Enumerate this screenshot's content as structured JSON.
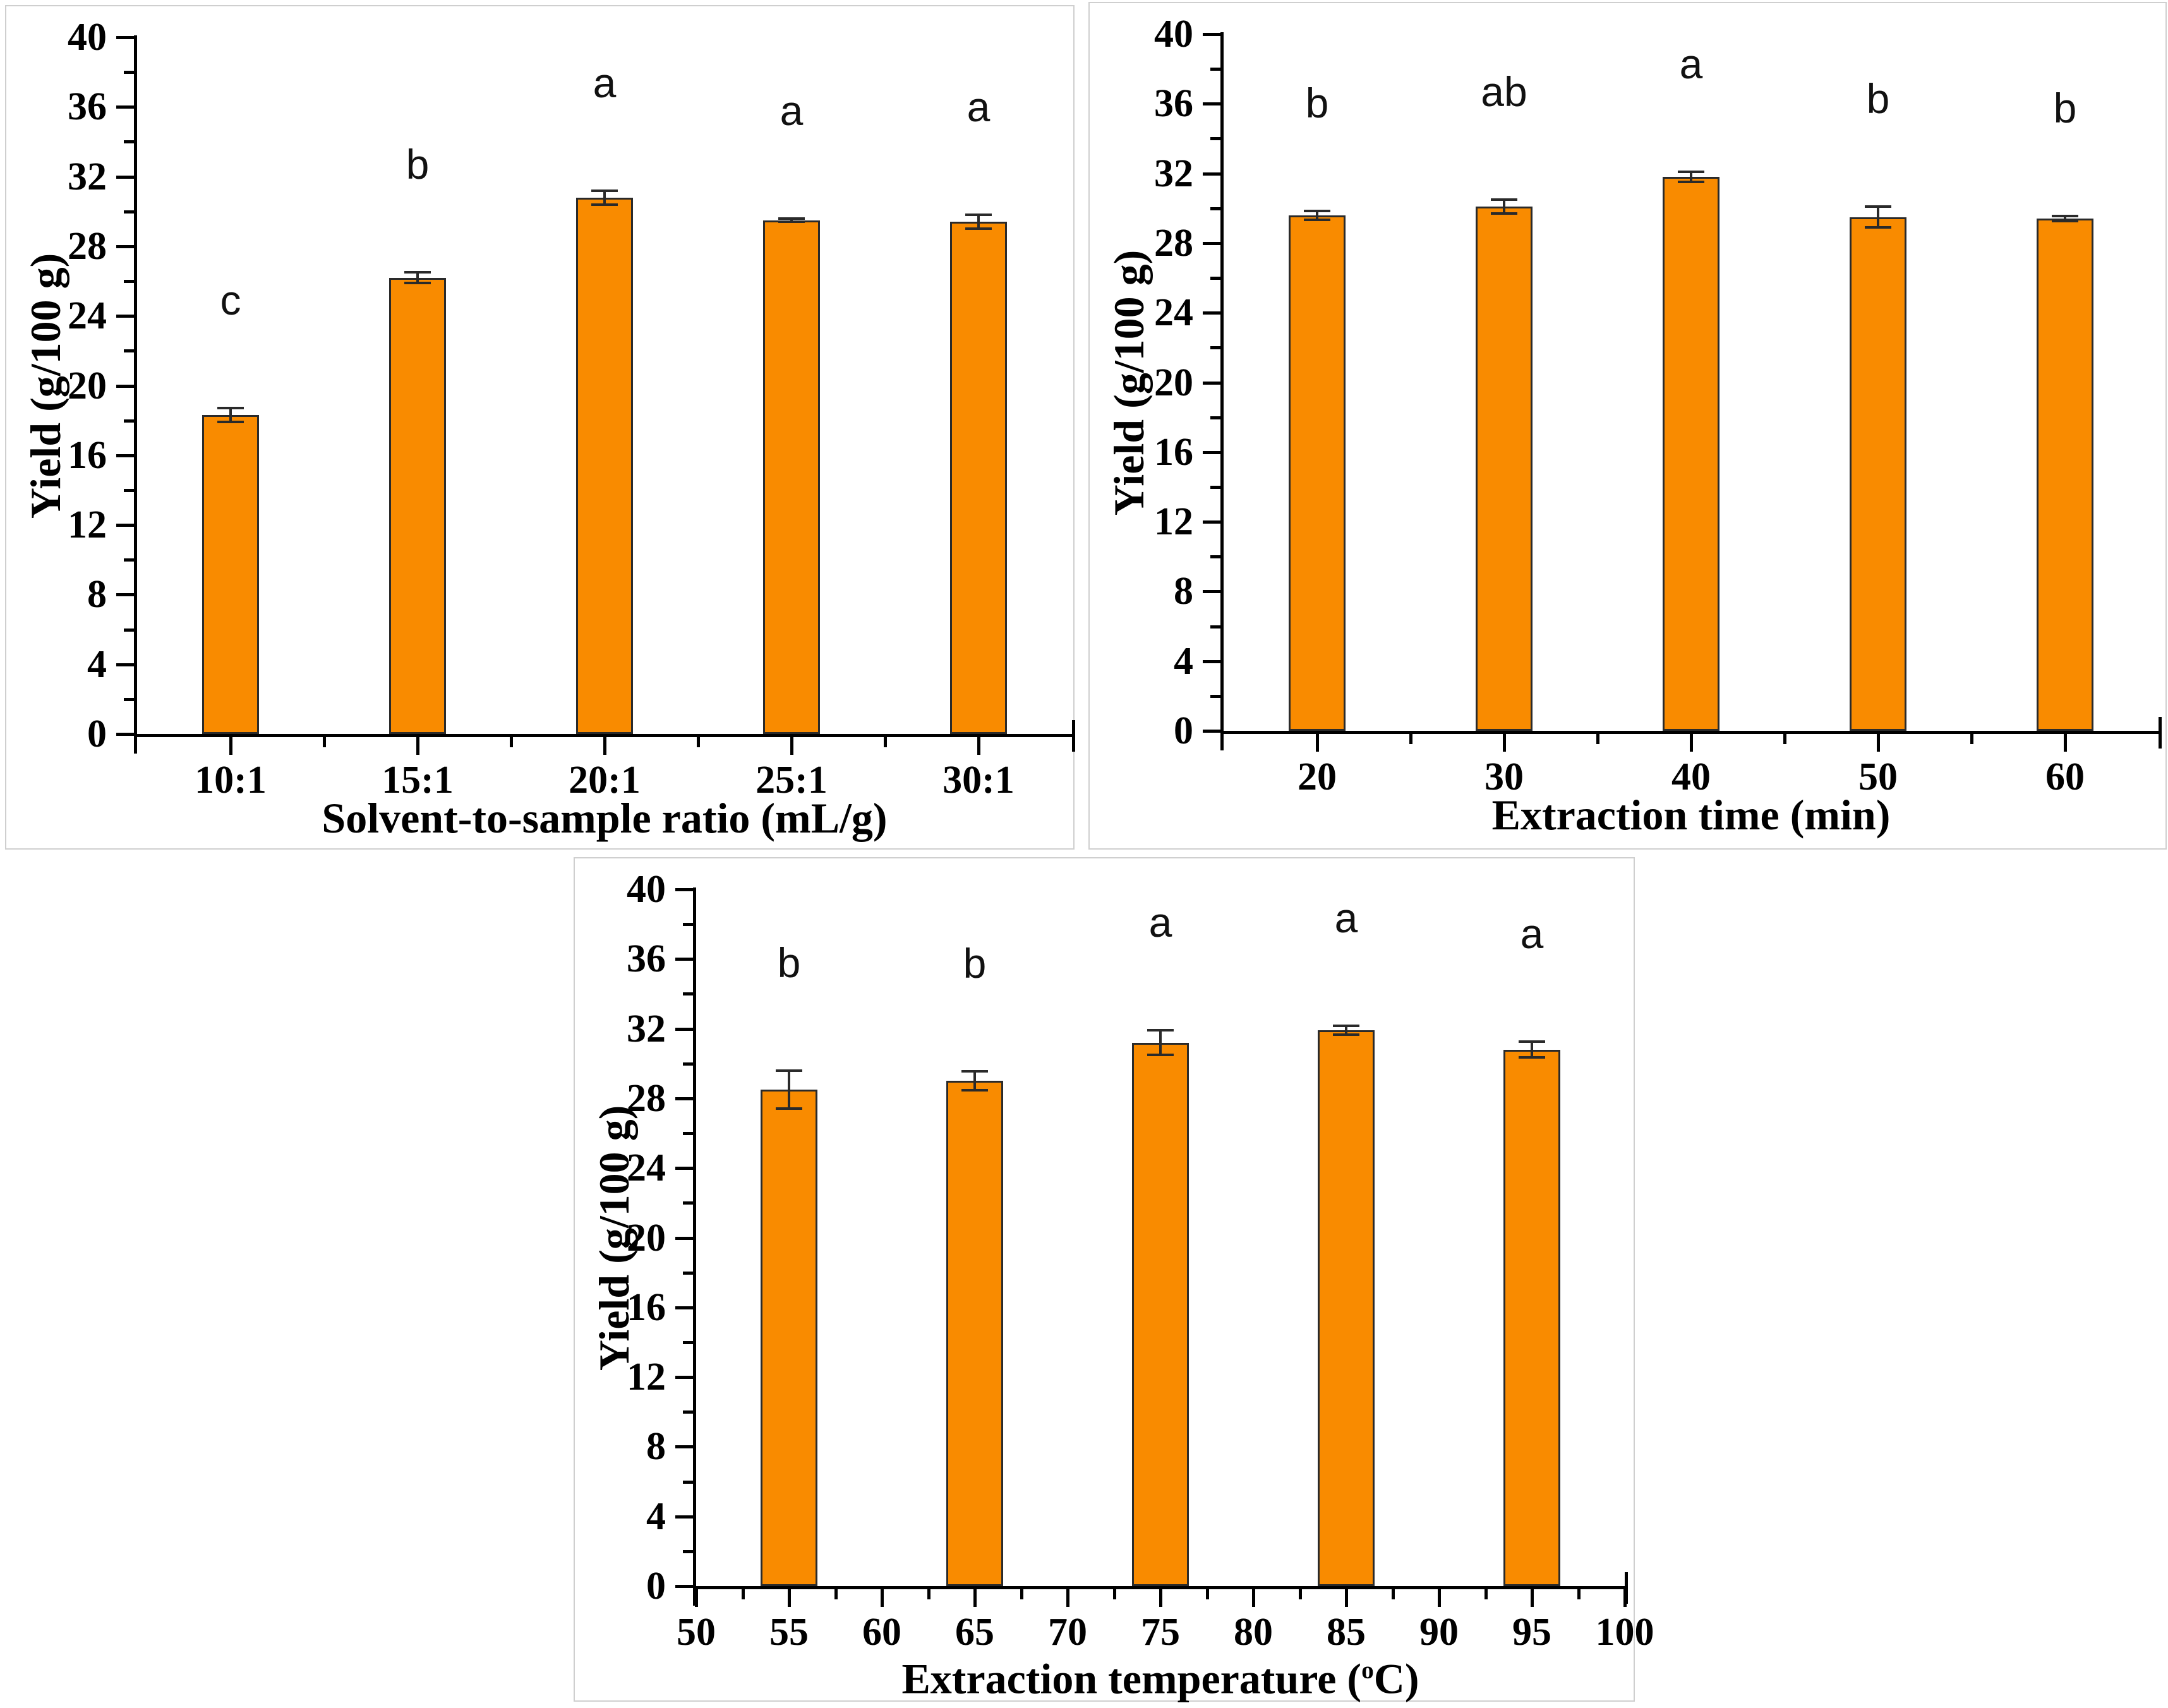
{
  "figure": {
    "bar_color": "#F98B00",
    "bar_border_color": "#2A2A2A",
    "error_bar_color": "#2A2A2A",
    "axis_color": "#000000",
    "panel_border_color": "#CFCFCF",
    "y_axis": {
      "label": "Yield (g/100 g)",
      "min": 0,
      "max": 40,
      "major_step": 4,
      "minor_step": 2,
      "tick_labels": [
        "0",
        "4",
        "8",
        "12",
        "16",
        "20",
        "24",
        "28",
        "32",
        "36",
        "40"
      ]
    }
  },
  "chart_data": [
    {
      "type": "bar",
      "panel": "top-left",
      "xlabel": "Solvent-to-sample ratio (mL/g)",
      "ylabel": "Yield (g/100 g)",
      "ylim": [
        0,
        40
      ],
      "categories": [
        "10:1",
        "15:1",
        "20:1",
        "25:1",
        "30:1"
      ],
      "values": [
        18.3,
        26.2,
        30.8,
        29.5,
        29.4
      ],
      "errors": [
        0.4,
        0.3,
        0.4,
        0.1,
        0.4
      ],
      "sig_letters": [
        "c",
        "b",
        "a",
        "a",
        "a"
      ],
      "grid": "off",
      "legend": "none"
    },
    {
      "type": "bar",
      "panel": "top-right",
      "xlabel": "Extraction time (min)",
      "ylabel": "Yield (g/100 g)",
      "ylim": [
        0,
        40
      ],
      "categories": [
        "20",
        "30",
        "40",
        "50",
        "60"
      ],
      "values": [
        29.6,
        30.1,
        31.8,
        29.5,
        29.4
      ],
      "errors": [
        0.25,
        0.4,
        0.3,
        0.6,
        0.15
      ],
      "sig_letters": [
        "b",
        "ab",
        "a",
        "b",
        "b"
      ],
      "grid": "off",
      "legend": "none"
    },
    {
      "type": "bar",
      "panel": "bottom-center",
      "xlabel": "Extraction temperature (°C)",
      "ylabel": "Yield (g/100 g)",
      "ylim": [
        0,
        40
      ],
      "x_axis_numeric": {
        "min": 50,
        "max": 100,
        "major_step": 5,
        "minor_step": 2.5
      },
      "x_tick_labels": [
        "50",
        "55",
        "60",
        "65",
        "70",
        "75",
        "80",
        "85",
        "90",
        "95",
        "100"
      ],
      "bar_positions": [
        55,
        65,
        75,
        85,
        95
      ],
      "categories": [
        "55",
        "65",
        "75",
        "85",
        "95"
      ],
      "values": [
        28.5,
        29.0,
        31.2,
        31.9,
        30.8
      ],
      "errors": [
        1.1,
        0.55,
        0.7,
        0.25,
        0.45
      ],
      "sig_letters": [
        "b",
        "b",
        "a",
        "a",
        "a"
      ],
      "grid": "off",
      "legend": "none"
    }
  ]
}
